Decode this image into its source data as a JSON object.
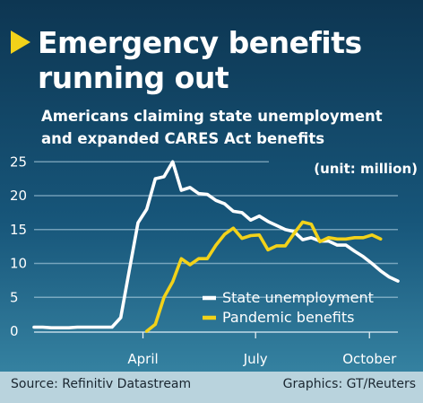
{
  "header": {
    "title_line1": "Emergency benefits",
    "title_line2": "running out",
    "subtitle_line1": "Americans claiming state unemployment",
    "subtitle_line2": "and expanded CARES Act benefits"
  },
  "footer": {
    "source": "Source: Refinitiv Datastream",
    "credit": "Graphics: GT/Reuters"
  },
  "colors": {
    "state": "#ffffff",
    "pandemic": "#f2d21a",
    "accent": "#f2d21a"
  },
  "chart_data": {
    "type": "line",
    "unit_label": "(unit: million)",
    "y_ticks": [
      0,
      5,
      10,
      15,
      20,
      25
    ],
    "ylim": [
      0,
      26
    ],
    "x_axis": "weeks, 2020",
    "x_ticks": [
      {
        "label": "April",
        "date": "2020-04-01"
      },
      {
        "label": "July",
        "date": "2020-07-01"
      },
      {
        "label": "October",
        "date": "2020-10-01"
      }
    ],
    "legend": [
      {
        "name": "State unemployment",
        "color": "#ffffff"
      },
      {
        "name": "Pandemic benefits",
        "color": "#f2d21a"
      }
    ],
    "grid": true,
    "series": [
      {
        "name": "State unemployment",
        "color": "#ffffff",
        "points": [
          [
            "2020-01-04",
            0.6
          ],
          [
            "2020-01-11",
            0.6
          ],
          [
            "2020-01-18",
            0.5
          ],
          [
            "2020-01-25",
            0.5
          ],
          [
            "2020-02-01",
            0.5
          ],
          [
            "2020-02-08",
            0.6
          ],
          [
            "2020-02-15",
            0.6
          ],
          [
            "2020-02-22",
            0.6
          ],
          [
            "2020-02-29",
            0.6
          ],
          [
            "2020-03-07",
            0.6
          ],
          [
            "2020-03-14",
            2.0
          ],
          [
            "2020-03-21",
            9.0
          ],
          [
            "2020-03-28",
            16.0
          ],
          [
            "2020-04-04",
            18.0
          ],
          [
            "2020-04-11",
            22.5
          ],
          [
            "2020-04-18",
            22.8
          ],
          [
            "2020-04-25",
            25.0
          ],
          [
            "2020-05-02",
            20.8
          ],
          [
            "2020-05-09",
            21.2
          ],
          [
            "2020-05-16",
            20.3
          ],
          [
            "2020-05-23",
            20.2
          ],
          [
            "2020-05-30",
            19.3
          ],
          [
            "2020-06-06",
            18.8
          ],
          [
            "2020-06-13",
            17.7
          ],
          [
            "2020-06-20",
            17.5
          ],
          [
            "2020-06-27",
            16.4
          ],
          [
            "2020-07-04",
            17.0
          ],
          [
            "2020-07-11",
            16.2
          ],
          [
            "2020-07-18",
            15.6
          ],
          [
            "2020-07-25",
            15.0
          ],
          [
            "2020-08-01",
            14.7
          ],
          [
            "2020-08-08",
            13.5
          ],
          [
            "2020-08-15",
            13.8
          ],
          [
            "2020-08-22",
            13.3
          ],
          [
            "2020-08-29",
            13.3
          ],
          [
            "2020-09-05",
            12.7
          ],
          [
            "2020-09-12",
            12.7
          ],
          [
            "2020-09-19",
            11.8
          ],
          [
            "2020-09-26",
            11.0
          ],
          [
            "2020-10-03",
            10.0
          ],
          [
            "2020-10-10",
            8.9
          ],
          [
            "2020-10-17",
            8.0
          ],
          [
            "2020-10-24",
            7.4
          ]
        ]
      },
      {
        "name": "Pandemic benefits",
        "color": "#f2d21a",
        "points": [
          [
            "2020-04-04",
            0.0
          ],
          [
            "2020-04-11",
            1.0
          ],
          [
            "2020-04-18",
            5.0
          ],
          [
            "2020-04-25",
            7.3
          ],
          [
            "2020-05-02",
            10.7
          ],
          [
            "2020-05-09",
            9.8
          ],
          [
            "2020-05-16",
            10.7
          ],
          [
            "2020-05-23",
            10.7
          ],
          [
            "2020-05-30",
            12.7
          ],
          [
            "2020-06-06",
            14.3
          ],
          [
            "2020-06-13",
            15.2
          ],
          [
            "2020-06-20",
            13.7
          ],
          [
            "2020-06-27",
            14.1
          ],
          [
            "2020-07-04",
            14.2
          ],
          [
            "2020-07-11",
            12.0
          ],
          [
            "2020-07-18",
            12.6
          ],
          [
            "2020-07-25",
            12.6
          ],
          [
            "2020-08-01",
            14.4
          ],
          [
            "2020-08-08",
            16.1
          ],
          [
            "2020-08-15",
            15.8
          ],
          [
            "2020-08-22",
            13.2
          ],
          [
            "2020-08-29",
            13.8
          ],
          [
            "2020-09-05",
            13.6
          ],
          [
            "2020-09-12",
            13.6
          ],
          [
            "2020-09-19",
            13.8
          ],
          [
            "2020-09-26",
            13.8
          ],
          [
            "2020-10-03",
            14.2
          ],
          [
            "2020-10-10",
            13.6
          ]
        ]
      }
    ]
  }
}
